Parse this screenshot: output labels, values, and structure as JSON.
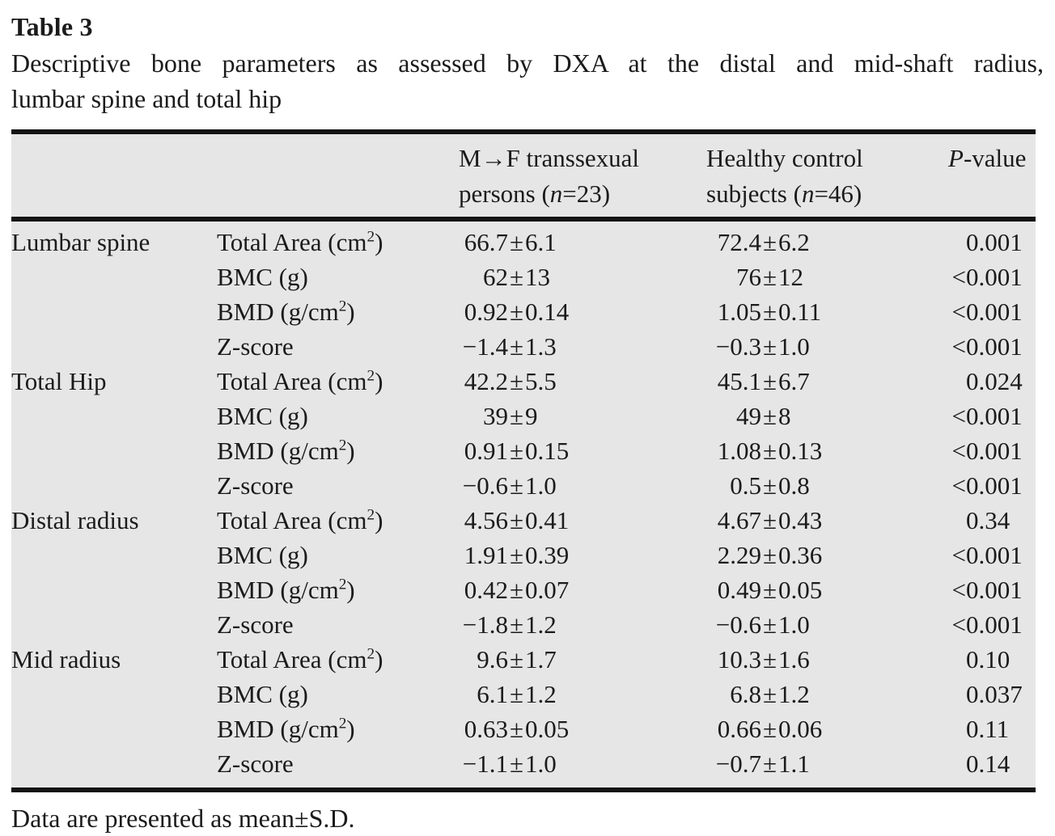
{
  "title": "Table 3",
  "caption_line1": "Descriptive bone parameters as assessed by DXA at the distal and mid-shaft radius,",
  "caption_line2": "lumbar spine and total hip",
  "symbols": {
    "pm": "±"
  },
  "colors": {
    "table_background": "#e6e6e7",
    "rule_color": "#141414",
    "text_color": "#1b1b1b"
  },
  "header": {
    "group1_line1": "M→F transsexual",
    "group1_line2_prefix": "persons (",
    "group1_line2_suffix": "=23)",
    "group2_line1": "Healthy control",
    "group2_line2_prefix": "subjects (",
    "group2_line2_suffix": "=46)",
    "n_symbol": "n",
    "p_italic": "P",
    "p_rest": "-value"
  },
  "rows": [
    {
      "group": "Lumbar spine",
      "param": "Total Area (cm",
      "param_sup": "2",
      "param_tail": ")",
      "tf_mean": "66.7",
      "tf_sd": "6.1",
      "hc_mean": "72.4",
      "hc_sd": "6.2",
      "p_prefix": "",
      "p_value": "0.001"
    },
    {
      "group": "",
      "param": "BMC (g)",
      "param_sup": "",
      "param_tail": "",
      "tf_mean": "62",
      "tf_sd": "13",
      "hc_mean": "76",
      "hc_sd": "12",
      "p_prefix": "<",
      "p_value": "0.001"
    },
    {
      "group": "",
      "param": "BMD (g/cm",
      "param_sup": "2",
      "param_tail": ")",
      "tf_mean": "0.92",
      "tf_sd": "0.14",
      "hc_mean": "1.05",
      "hc_sd": "0.11",
      "p_prefix": "<",
      "p_value": "0.001"
    },
    {
      "group": "",
      "param": "Z-score",
      "param_sup": "",
      "param_tail": "",
      "tf_mean": "−1.4",
      "tf_sd": "1.3",
      "hc_mean": "−0.3",
      "hc_sd": "1.0",
      "p_prefix": "<",
      "p_value": "0.001"
    },
    {
      "group": "Total Hip",
      "param": "Total Area (cm",
      "param_sup": "2",
      "param_tail": ")",
      "tf_mean": "42.2",
      "tf_sd": "5.5",
      "hc_mean": "45.1",
      "hc_sd": "6.7",
      "p_prefix": "",
      "p_value": "0.024"
    },
    {
      "group": "",
      "param": "BMC (g)",
      "param_sup": "",
      "param_tail": "",
      "tf_mean": "39",
      "tf_sd": "9",
      "hc_mean": "49",
      "hc_sd": "8",
      "p_prefix": "<",
      "p_value": "0.001"
    },
    {
      "group": "",
      "param": "BMD (g/cm",
      "param_sup": "2",
      "param_tail": ")",
      "tf_mean": "0.91",
      "tf_sd": "0.15",
      "hc_mean": "1.08",
      "hc_sd": "0.13",
      "p_prefix": "<",
      "p_value": "0.001"
    },
    {
      "group": "",
      "param": "Z-score",
      "param_sup": "",
      "param_tail": "",
      "tf_mean": "−0.6",
      "tf_sd": "1.0",
      "hc_mean": "0.5",
      "hc_sd": "0.8",
      "p_prefix": "<",
      "p_value": "0.001"
    },
    {
      "group": "Distal radius",
      "param": "Total Area (cm",
      "param_sup": "2",
      "param_tail": ")",
      "tf_mean": "4.56",
      "tf_sd": "0.41",
      "hc_mean": "4.67",
      "hc_sd": "0.43",
      "p_prefix": "",
      "p_value": "0.34"
    },
    {
      "group": "",
      "param": "BMC (g)",
      "param_sup": "",
      "param_tail": "",
      "tf_mean": "1.91",
      "tf_sd": "0.39",
      "hc_mean": "2.29",
      "hc_sd": "0.36",
      "p_prefix": "<",
      "p_value": "0.001"
    },
    {
      "group": "",
      "param": "BMD (g/cm",
      "param_sup": "2",
      "param_tail": ")",
      "tf_mean": "0.42",
      "tf_sd": "0.07",
      "hc_mean": "0.49",
      "hc_sd": "0.05",
      "p_prefix": "<",
      "p_value": "0.001"
    },
    {
      "group": "",
      "param": "Z-score",
      "param_sup": "",
      "param_tail": "",
      "tf_mean": "−1.8",
      "tf_sd": "1.2",
      "hc_mean": "−0.6",
      "hc_sd": "1.0",
      "p_prefix": "<",
      "p_value": "0.001"
    },
    {
      "group": "Mid radius",
      "param": "Total Area (cm",
      "param_sup": "2",
      "param_tail": ")",
      "tf_mean": "9.6",
      "tf_sd": "1.7",
      "hc_mean": "10.3",
      "hc_sd": "1.6",
      "p_prefix": "",
      "p_value": "0.10"
    },
    {
      "group": "",
      "param": "BMC (g)",
      "param_sup": "",
      "param_tail": "",
      "tf_mean": "6.1",
      "tf_sd": "1.2",
      "hc_mean": "6.8",
      "hc_sd": "1.2",
      "p_prefix": "",
      "p_value": "0.037"
    },
    {
      "group": "",
      "param": "BMD (g/cm",
      "param_sup": "2",
      "param_tail": ")",
      "tf_mean": "0.63",
      "tf_sd": "0.05",
      "hc_mean": "0.66",
      "hc_sd": "0.06",
      "p_prefix": "",
      "p_value": "0.11"
    },
    {
      "group": "",
      "param": "Z-score",
      "param_sup": "",
      "param_tail": "",
      "tf_mean": "−1.1",
      "tf_sd": "1.0",
      "hc_mean": "−0.7",
      "hc_sd": "1.1",
      "p_prefix": "",
      "p_value": "0.14"
    }
  ],
  "footnote": "Data are presented as mean±S.D."
}
